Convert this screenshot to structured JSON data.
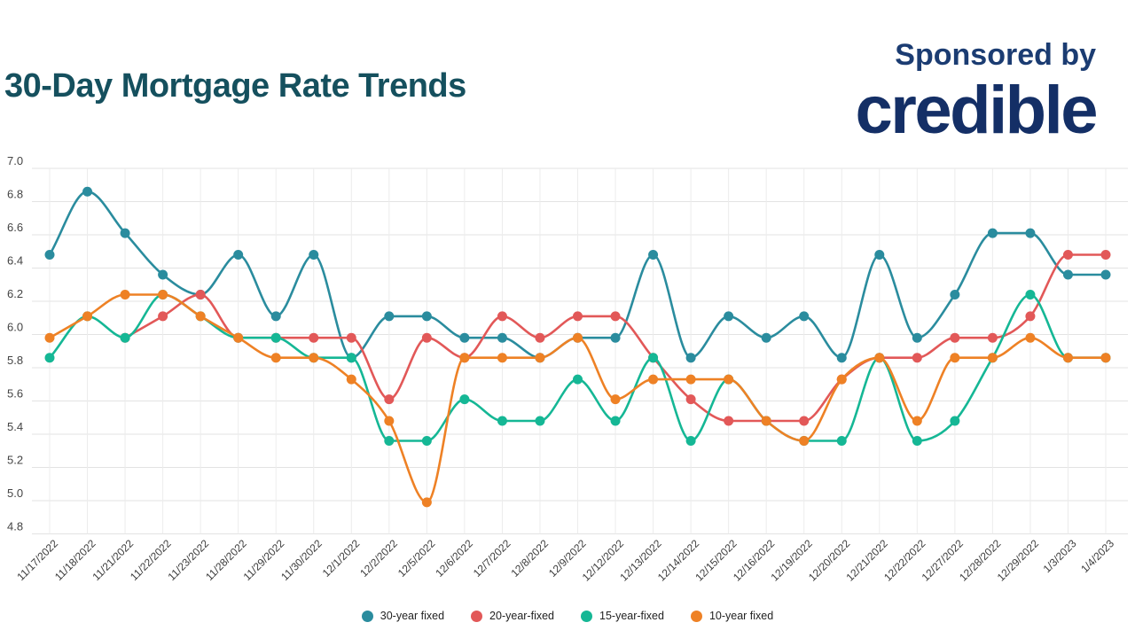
{
  "header": {
    "title": "30-Day Mortgage Rate Trends"
  },
  "sponsor": {
    "label": "Sponsored by",
    "brand": "credible"
  },
  "colors": {
    "title_teal": "#15505E",
    "sponsor_navy": "#1B3C72",
    "brand_navy": "#142F66",
    "gridline": "#E3E3E3",
    "axis_text": "#444444"
  },
  "chart_data": {
    "type": "line",
    "title": "30-Day Mortgage Rate Trends",
    "xlabel": "",
    "ylabel": "",
    "ylim": [
      4.8,
      7.0
    ],
    "y_tick_labels": [
      "7.0",
      "6.8",
      "6.6",
      "6.4",
      "6.2",
      "6.0",
      "5.8",
      "5.6",
      "5.4",
      "5.2",
      "5.0",
      "4.8"
    ],
    "grid": true,
    "legend_position": "bottom",
    "x": [
      "11/17/2022",
      "11/18/2022",
      "11/21/2022",
      "11/22/2022",
      "11/23/2022",
      "11/28/2022",
      "11/29/2022",
      "11/30/2022",
      "12/1/2022",
      "12/2/2022",
      "12/5/2022",
      "12/6/2022",
      "12/7/2022",
      "12/8/2022",
      "12/9/2022",
      "12/12/2022",
      "12/13/2022",
      "12/14/2022",
      "12/15/2022",
      "12/16/2022",
      "12/19/2022",
      "12/20/2022",
      "12/21/2022",
      "12/22/2022",
      "12/27/2022",
      "12/28/2022",
      "12/29/2022",
      "1/3/2023",
      "1/4/2023"
    ],
    "series": [
      {
        "name": "30-year fixed",
        "color": "#2A8C9E",
        "values": [
          6.48,
          6.86,
          6.61,
          6.36,
          6.24,
          6.48,
          6.11,
          6.48,
          5.86,
          6.11,
          6.11,
          5.98,
          5.98,
          5.86,
          5.98,
          5.98,
          6.48,
          5.86,
          6.11,
          5.98,
          6.11,
          5.86,
          6.48,
          5.98,
          6.24,
          6.61,
          6.61,
          6.36,
          6.36
        ]
      },
      {
        "name": "20-year-fixed",
        "color": "#E25858",
        "values": [
          null,
          null,
          5.98,
          6.11,
          6.24,
          5.98,
          5.98,
          5.98,
          5.98,
          5.61,
          5.98,
          5.86,
          6.11,
          5.98,
          6.11,
          6.11,
          5.86,
          5.61,
          5.48,
          5.48,
          5.48,
          5.73,
          5.86,
          5.86,
          5.98,
          5.98,
          6.11,
          6.48,
          6.48
        ]
      },
      {
        "name": "15-year-fixed",
        "color": "#15B795",
        "values": [
          5.86,
          6.11,
          5.98,
          6.24,
          6.11,
          5.98,
          5.98,
          5.86,
          5.86,
          5.36,
          5.36,
          5.61,
          5.48,
          5.48,
          5.73,
          5.48,
          5.86,
          5.36,
          5.73,
          5.48,
          5.36,
          5.36,
          5.86,
          5.36,
          5.48,
          5.86,
          6.24,
          5.86,
          5.86
        ]
      },
      {
        "name": "10-year fixed",
        "color": "#EE8125",
        "values": [
          5.98,
          6.11,
          6.24,
          6.24,
          6.11,
          5.98,
          5.86,
          5.86,
          5.73,
          5.48,
          4.99,
          5.86,
          5.86,
          5.86,
          5.98,
          5.61,
          5.73,
          5.73,
          5.73,
          5.48,
          5.36,
          5.73,
          5.86,
          5.48,
          5.86,
          5.86,
          5.98,
          5.86,
          5.86
        ]
      }
    ]
  }
}
